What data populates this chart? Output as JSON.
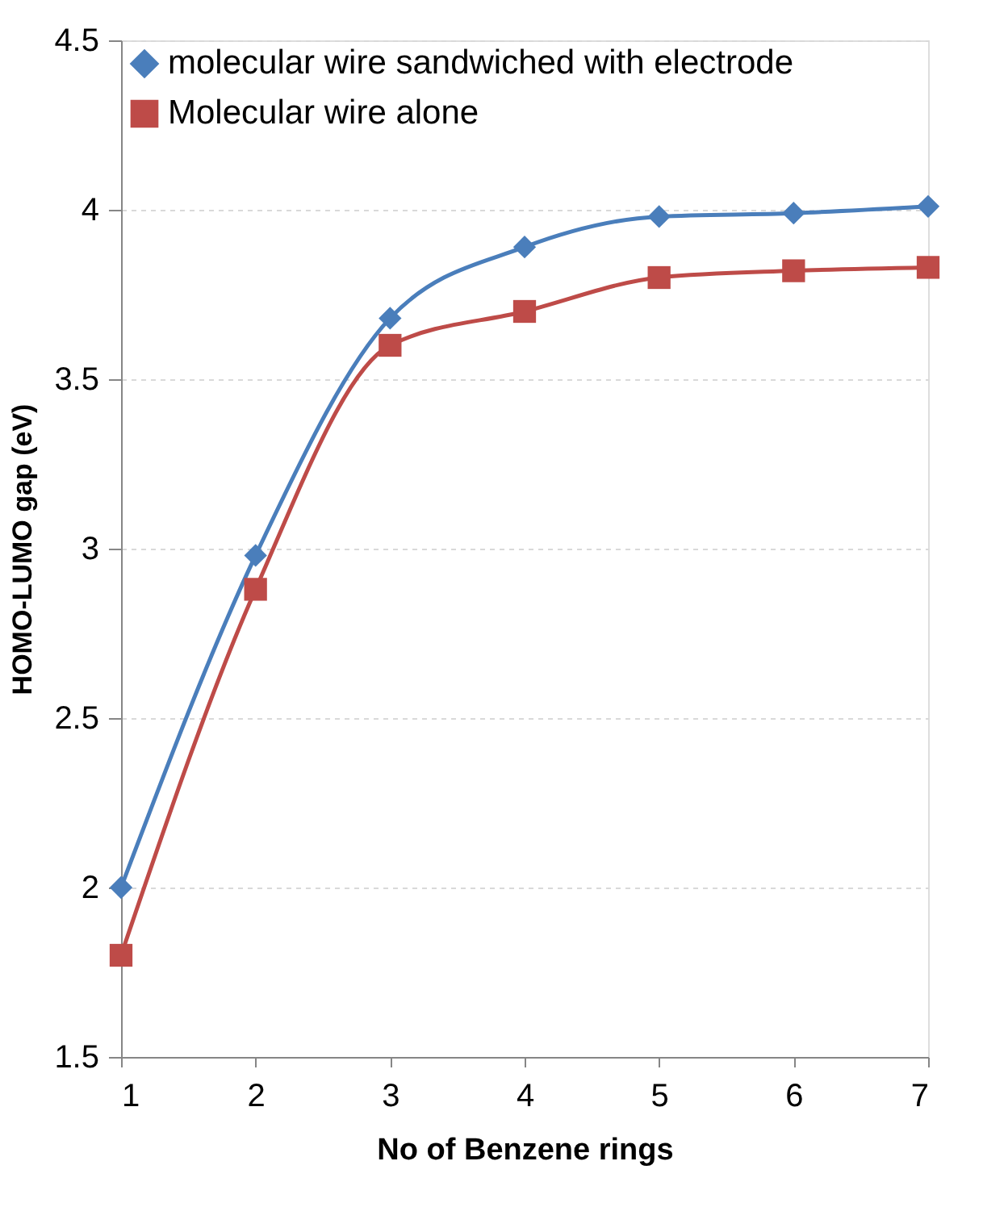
{
  "chart_data": {
    "type": "line",
    "xlabel": "No of Benzene rings",
    "ylabel": "HOMO-LUMO gap (eV)",
    "x": [
      1,
      2,
      3,
      4,
      5,
      6,
      7
    ],
    "series": [
      {
        "name": "molecular wire sandwiched with electrode",
        "color": "#4a7ebb",
        "marker": "diamond",
        "values": [
          2.0,
          2.98,
          3.68,
          3.89,
          3.98,
          3.99,
          4.01
        ]
      },
      {
        "name": "Molecular wire alone",
        "color": "#be4b48",
        "marker": "square",
        "values": [
          1.8,
          2.88,
          3.6,
          3.7,
          3.8,
          3.82,
          3.83
        ]
      }
    ],
    "xlim": [
      1,
      7
    ],
    "xticks": [
      1,
      2,
      3,
      4,
      5,
      6,
      7
    ],
    "ylim": [
      1.5,
      4.5
    ],
    "yticks": [
      1.5,
      2,
      2.5,
      3,
      3.5,
      4,
      4.5
    ],
    "grid": "y",
    "legend": "top left",
    "line_style": "solid"
  }
}
